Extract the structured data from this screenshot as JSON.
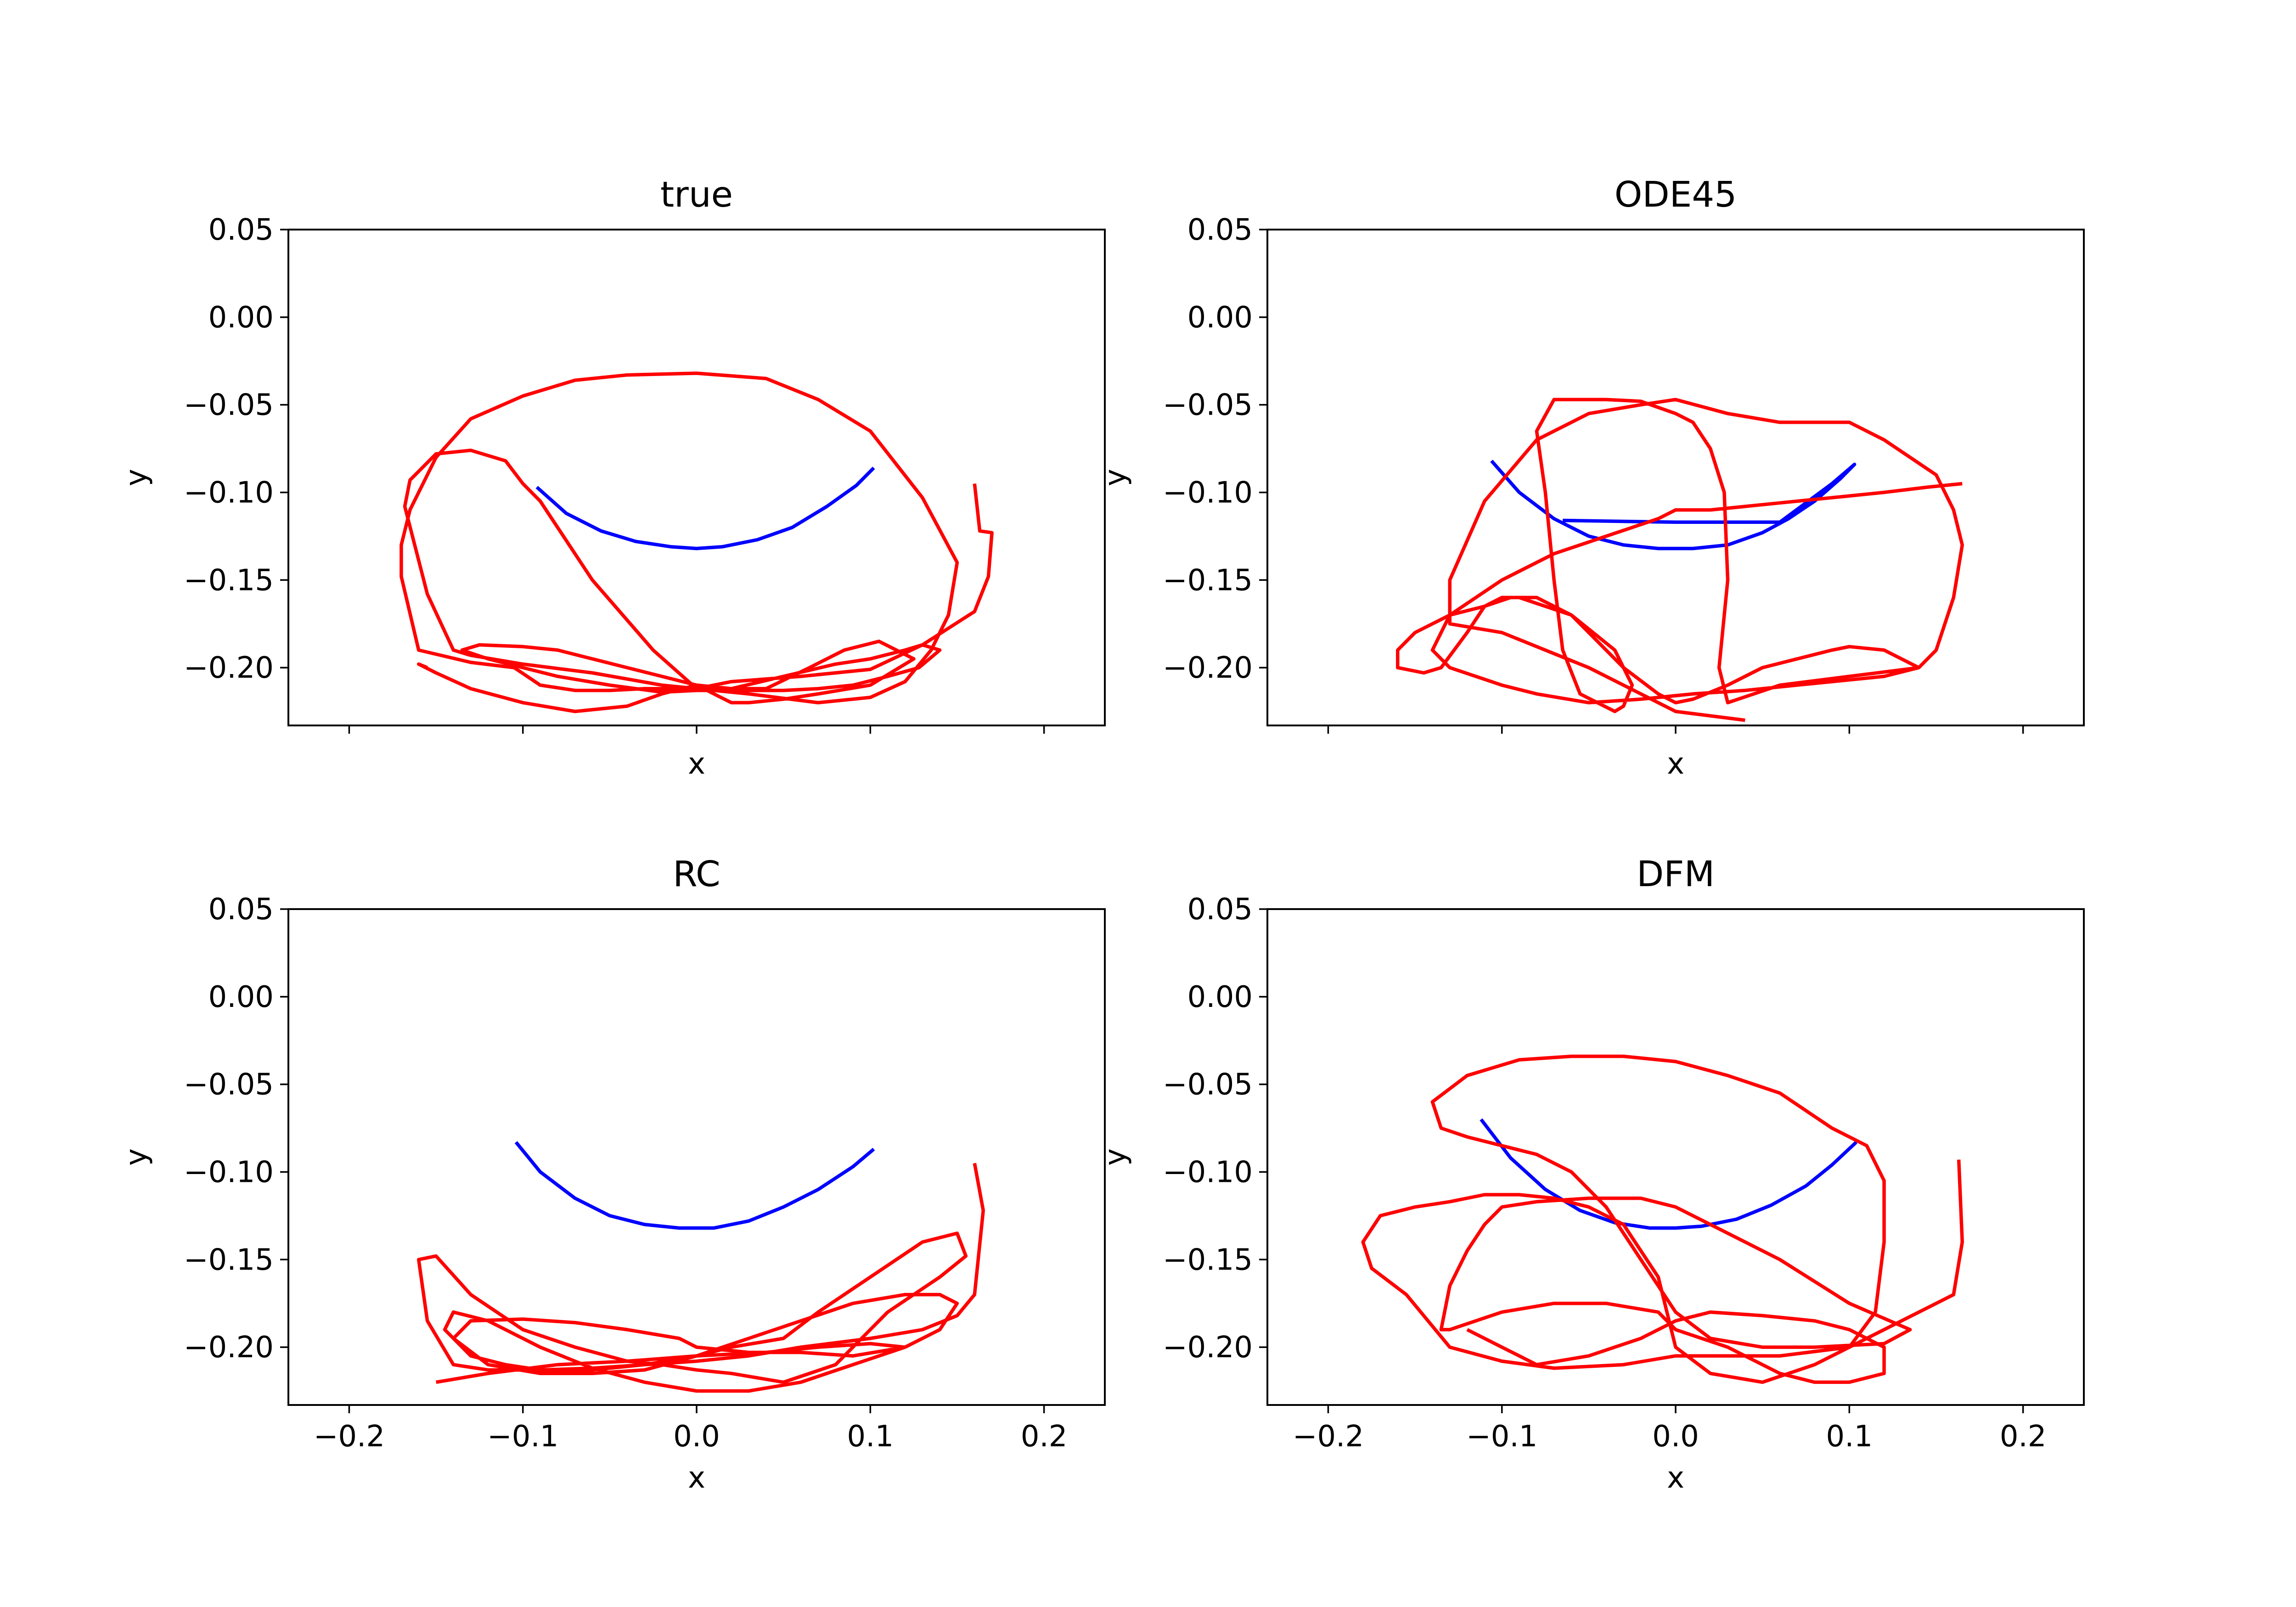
{
  "chart_data": [
    {
      "type": "line",
      "title": "true",
      "xlabel": "x",
      "ylabel": "y",
      "xlim": [
        -0.235,
        0.235
      ],
      "ylim": [
        -0.233,
        0.05
      ],
      "xticks": [
        -0.2,
        -0.1,
        0.0,
        0.1,
        0.2
      ],
      "xtick_labels": [],
      "yticks": [
        0.05,
        0.0,
        -0.05,
        -0.1,
        -0.15,
        -0.2
      ],
      "ytick_labels": [
        "0.05",
        "0.00",
        "−0.05",
        "−0.10",
        "−0.15",
        "−0.20"
      ],
      "series": [
        {
          "color": "#0000ff",
          "x": [
            -0.092,
            -0.075,
            -0.055,
            -0.035,
            -0.015,
            0.0,
            0.015,
            0.035,
            0.055,
            0.075,
            0.092,
            0.102
          ],
          "y": [
            -0.097,
            -0.112,
            -0.122,
            -0.128,
            -0.131,
            -0.132,
            -0.131,
            -0.127,
            -0.12,
            -0.108,
            -0.096,
            -0.086
          ]
        },
        {
          "color": "#ff0000",
          "x": [
            0.16,
            0.163,
            0.17,
            0.168,
            0.16,
            0.13,
            0.1,
            0.06,
            0.02,
            0.0,
            -0.02,
            -0.06,
            -0.1,
            -0.13,
            -0.14,
            -0.155,
            -0.168,
            -0.165,
            -0.15,
            -0.13,
            -0.11,
            -0.1,
            -0.09,
            -0.06,
            -0.025,
            0.0,
            0.03,
            0.07,
            0.1,
            0.12,
            0.135,
            0.145,
            0.15,
            0.13,
            0.1,
            0.07,
            0.04,
            0.0,
            -0.04,
            -0.07,
            -0.1,
            -0.13,
            -0.15,
            -0.165,
            -0.17,
            -0.17,
            -0.16,
            -0.13,
            -0.105,
            -0.09,
            -0.07,
            -0.05,
            -0.03,
            -0.01,
            0.0,
            0.02,
            0.05,
            0.08,
            0.1,
            0.12,
            0.13,
            0.14,
            0.128,
            0.11,
            0.09,
            0.07,
            0.05,
            0.03,
            0.01,
            0.0,
            -0.02,
            -0.05,
            -0.08,
            -0.1,
            -0.12,
            -0.135,
            -0.125,
            -0.1,
            -0.08,
            -0.06,
            -0.04,
            -0.02,
            0.0,
            0.02,
            0.04,
            0.065,
            0.085,
            0.105,
            0.125,
            0.1,
            0.07,
            0.05,
            0.03,
            0.02,
            0.01,
            0.0,
            -0.02,
            -0.04,
            -0.07,
            -0.1,
            -0.13,
            -0.15,
            -0.16,
            -0.155
          ],
          "y": [
            -0.095,
            -0.122,
            -0.123,
            -0.148,
            -0.168,
            -0.187,
            -0.201,
            -0.205,
            -0.208,
            -0.212,
            -0.21,
            -0.203,
            -0.198,
            -0.193,
            -0.19,
            -0.158,
            -0.108,
            -0.093,
            -0.078,
            -0.076,
            -0.082,
            -0.095,
            -0.105,
            -0.15,
            -0.19,
            -0.212,
            -0.215,
            -0.22,
            -0.217,
            -0.208,
            -0.19,
            -0.17,
            -0.14,
            -0.103,
            -0.065,
            -0.047,
            -0.035,
            -0.032,
            -0.033,
            -0.036,
            -0.045,
            -0.058,
            -0.08,
            -0.11,
            -0.13,
            -0.148,
            -0.19,
            -0.197,
            -0.2,
            -0.21,
            -0.213,
            -0.213,
            -0.212,
            -0.212,
            -0.213,
            -0.212,
            -0.205,
            -0.198,
            -0.195,
            -0.19,
            -0.187,
            -0.19,
            -0.2,
            -0.205,
            -0.21,
            -0.212,
            -0.213,
            -0.213,
            -0.213,
            -0.213,
            -0.214,
            -0.21,
            -0.205,
            -0.2,
            -0.195,
            -0.19,
            -0.187,
            -0.188,
            -0.19,
            -0.195,
            -0.2,
            -0.205,
            -0.21,
            -0.212,
            -0.212,
            -0.2,
            -0.19,
            -0.185,
            -0.195,
            -0.21,
            -0.215,
            -0.218,
            -0.22,
            -0.22,
            -0.215,
            -0.21,
            -0.215,
            -0.222,
            -0.225,
            -0.22,
            -0.212,
            -0.203,
            -0.198,
            -0.2
          ]
        }
      ]
    },
    {
      "type": "line",
      "title": "ODE45",
      "xlabel": "x",
      "ylabel": "y",
      "xlim": [
        -0.235,
        0.235
      ],
      "ylim": [
        -0.233,
        0.05
      ],
      "xticks": [
        -0.2,
        -0.1,
        0.0,
        0.1,
        0.2
      ],
      "xtick_labels": [],
      "yticks": [
        0.05,
        0.0,
        -0.05,
        -0.1,
        -0.15,
        -0.2
      ],
      "ytick_labels": [
        "0.05",
        "0.00",
        "−0.05",
        "−0.10",
        "−0.15",
        "−0.20"
      ],
      "series": [
        {
          "color": "#0000ff",
          "x": [
            -0.106,
            -0.09,
            -0.07,
            -0.05,
            -0.03,
            -0.01,
            0.0,
            0.01,
            0.03,
            0.05,
            0.065,
            0.08,
            0.095,
            0.103,
            0.09,
            0.06,
            0.0,
            -0.065
          ],
          "y": [
            -0.082,
            -0.1,
            -0.115,
            -0.125,
            -0.13,
            -0.132,
            -0.132,
            -0.132,
            -0.13,
            -0.123,
            -0.115,
            -0.105,
            -0.092,
            -0.084,
            -0.095,
            -0.117,
            -0.117,
            -0.116
          ],
          "comment_excluded": true
        },
        {
          "color": "#ff0000",
          "x": [
            0.04,
            0.0,
            -0.05,
            -0.1,
            -0.13,
            -0.13,
            -0.11,
            -0.08,
            -0.05,
            -0.02,
            0.0,
            0.03,
            0.06,
            0.1,
            0.12,
            0.15,
            0.16,
            0.165,
            0.16,
            0.15,
            0.14,
            0.1,
            0.06,
            0.03,
            0.025,
            0.03,
            0.028,
            0.02,
            0.01,
            0.0,
            -0.02,
            -0.04,
            -0.07,
            -0.08,
            -0.075,
            -0.07,
            -0.065,
            -0.055,
            -0.035,
            -0.03,
            -0.025,
            -0.035,
            -0.06,
            -0.09,
            -0.1,
            -0.11,
            -0.12,
            -0.135,
            -0.145,
            -0.16,
            -0.16,
            -0.15,
            -0.13,
            -0.11,
            -0.095,
            -0.08,
            -0.07,
            -0.06,
            -0.05,
            -0.03,
            -0.01,
            0.0,
            0.01,
            0.03,
            0.05,
            0.07,
            0.09,
            0.1,
            0.12,
            0.13,
            0.14,
            0.12,
            0.1,
            0.07,
            0.04,
            0.01,
            0.0,
            -0.02,
            -0.05,
            -0.08,
            -0.1,
            -0.13,
            -0.14,
            -0.13,
            -0.1,
            -0.07,
            -0.04,
            -0.01,
            0.0,
            0.01,
            0.02,
            0.04,
            0.06,
            0.08,
            0.1,
            0.12,
            0.145,
            0.165
          ],
          "y": [
            -0.23,
            -0.225,
            -0.2,
            -0.18,
            -0.175,
            -0.15,
            -0.105,
            -0.07,
            -0.055,
            -0.05,
            -0.047,
            -0.055,
            -0.06,
            -0.06,
            -0.07,
            -0.09,
            -0.11,
            -0.13,
            -0.16,
            -0.19,
            -0.2,
            -0.205,
            -0.21,
            -0.22,
            -0.2,
            -0.15,
            -0.1,
            -0.075,
            -0.06,
            -0.055,
            -0.048,
            -0.047,
            -0.047,
            -0.065,
            -0.1,
            -0.15,
            -0.19,
            -0.215,
            -0.225,
            -0.222,
            -0.21,
            -0.19,
            -0.17,
            -0.16,
            -0.16,
            -0.165,
            -0.18,
            -0.2,
            -0.203,
            -0.2,
            -0.19,
            -0.18,
            -0.17,
            -0.165,
            -0.16,
            -0.16,
            -0.165,
            -0.17,
            -0.18,
            -0.2,
            -0.215,
            -0.22,
            -0.218,
            -0.21,
            -0.2,
            -0.195,
            -0.19,
            -0.188,
            -0.19,
            -0.195,
            -0.2,
            -0.205,
            -0.207,
            -0.21,
            -0.213,
            -0.215,
            -0.216,
            -0.218,
            -0.22,
            -0.215,
            -0.21,
            -0.2,
            -0.19,
            -0.17,
            -0.15,
            -0.135,
            -0.125,
            -0.115,
            -0.11,
            -0.11,
            -0.11,
            -0.108,
            -0.106,
            -0.104,
            -0.102,
            -0.1,
            -0.097,
            -0.095
          ]
        }
      ]
    },
    {
      "type": "line",
      "title": "RC",
      "xlabel": "x",
      "ylabel": "y",
      "xlim": [
        -0.235,
        0.235
      ],
      "ylim": [
        -0.233,
        0.05
      ],
      "xticks": [
        -0.2,
        -0.1,
        0.0,
        0.1,
        0.2
      ],
      "xtick_labels": [
        "−0.2",
        "−0.1",
        "0.0",
        "0.1",
        "0.2"
      ],
      "yticks": [
        0.05,
        0.0,
        -0.05,
        -0.1,
        -0.15,
        -0.2
      ],
      "ytick_labels": [
        "0.05",
        "0.00",
        "−0.05",
        "−0.10",
        "−0.15",
        "−0.20"
      ],
      "series": [
        {
          "color": "#0000ff",
          "x": [
            -0.104,
            -0.09,
            -0.07,
            -0.05,
            -0.03,
            -0.01,
            0.0,
            0.01,
            0.03,
            0.05,
            0.07,
            0.09,
            0.102
          ],
          "y": [
            -0.083,
            -0.1,
            -0.115,
            -0.125,
            -0.13,
            -0.132,
            -0.132,
            -0.132,
            -0.128,
            -0.12,
            -0.11,
            -0.097,
            -0.087
          ]
        },
        {
          "color": "#ff0000",
          "x": [
            0.16,
            0.165,
            0.16,
            0.15,
            0.13,
            0.1,
            0.06,
            0.03,
            0.0,
            -0.03,
            -0.06,
            -0.09,
            -0.12,
            -0.14,
            -0.155,
            -0.16,
            -0.15,
            -0.13,
            -0.1,
            -0.07,
            -0.04,
            -0.02,
            0.0,
            0.02,
            0.05,
            0.08,
            0.11,
            0.14,
            0.155,
            0.15,
            0.13,
            0.1,
            0.07,
            0.05,
            0.02,
            0.0,
            -0.03,
            -0.06,
            -0.09,
            -0.11,
            -0.13,
            -0.145,
            -0.14,
            -0.12,
            -0.09,
            -0.06,
            -0.03,
            0.0,
            0.03,
            0.06,
            0.09,
            0.12,
            0.14,
            0.15,
            0.14,
            0.12,
            0.09,
            0.06,
            0.03,
            0.0,
            -0.03,
            -0.06,
            -0.09,
            -0.12,
            -0.14,
            -0.13,
            -0.1,
            -0.07,
            -0.04,
            -0.01,
            0.0,
            0.03,
            0.06,
            0.09,
            0.12,
            0.1,
            0.07,
            0.04,
            0.0,
            -0.04,
            -0.08,
            -0.12,
            -0.15
          ],
          "y": [
            -0.095,
            -0.122,
            -0.17,
            -0.182,
            -0.19,
            -0.195,
            -0.2,
            -0.205,
            -0.208,
            -0.21,
            -0.212,
            -0.213,
            -0.213,
            -0.21,
            -0.185,
            -0.15,
            -0.148,
            -0.17,
            -0.19,
            -0.2,
            -0.208,
            -0.21,
            -0.213,
            -0.215,
            -0.22,
            -0.21,
            -0.18,
            -0.16,
            -0.148,
            -0.135,
            -0.14,
            -0.16,
            -0.18,
            -0.195,
            -0.2,
            -0.205,
            -0.21,
            -0.213,
            -0.213,
            -0.21,
            -0.205,
            -0.19,
            -0.18,
            -0.185,
            -0.2,
            -0.212,
            -0.22,
            -0.225,
            -0.225,
            -0.22,
            -0.21,
            -0.2,
            -0.19,
            -0.175,
            -0.17,
            -0.17,
            -0.175,
            -0.185,
            -0.195,
            -0.205,
            -0.213,
            -0.215,
            -0.215,
            -0.21,
            -0.195,
            -0.185,
            -0.184,
            -0.186,
            -0.19,
            -0.195,
            -0.2,
            -0.203,
            -0.203,
            -0.205,
            -0.2,
            -0.198,
            -0.2,
            -0.203,
            -0.205,
            -0.208,
            -0.21,
            -0.215,
            -0.22
          ]
        }
      ]
    },
    {
      "type": "line",
      "title": "DFM",
      "xlabel": "x",
      "ylabel": "y",
      "xlim": [
        -0.235,
        0.235
      ],
      "ylim": [
        -0.233,
        0.05
      ],
      "xticks": [
        -0.2,
        -0.1,
        0.0,
        0.1,
        0.2
      ],
      "xtick_labels": [
        "−0.2",
        "−0.1",
        "0.0",
        "0.1",
        "0.2"
      ],
      "yticks": [
        0.05,
        0.0,
        -0.05,
        -0.1,
        -0.15,
        -0.2
      ],
      "ytick_labels": [
        "0.05",
        "0.00",
        "−0.05",
        "−0.10",
        "−0.15",
        "−0.20"
      ],
      "series": [
        {
          "color": "#0000ff",
          "x": [
            -0.112,
            -0.095,
            -0.075,
            -0.055,
            -0.035,
            -0.015,
            0.0,
            0.015,
            0.035,
            0.055,
            0.075,
            0.09,
            0.104
          ],
          "y": [
            -0.07,
            -0.092,
            -0.11,
            -0.122,
            -0.129,
            -0.132,
            -0.132,
            -0.131,
            -0.127,
            -0.119,
            -0.108,
            -0.096,
            -0.083
          ]
        },
        {
          "color": "#ff0000",
          "x": [
            0.163,
            0.165,
            0.16,
            0.12,
            0.1,
            0.06,
            0.03,
            0.0,
            -0.03,
            -0.07,
            -0.1,
            -0.13,
            -0.155,
            -0.175,
            -0.18,
            -0.17,
            -0.15,
            -0.13,
            -0.11,
            -0.09,
            -0.07,
            -0.05,
            -0.03,
            -0.01,
            0.0,
            0.02,
            0.05,
            0.08,
            0.1,
            0.115,
            0.12,
            0.12,
            0.11,
            0.09,
            0.06,
            0.03,
            0.0,
            -0.03,
            -0.06,
            -0.09,
            -0.12,
            -0.14,
            -0.135,
            -0.12,
            -0.1,
            -0.08,
            -0.06,
            -0.04,
            -0.02,
            0.0,
            0.02,
            0.05,
            0.08,
            0.1,
            0.12,
            0.135,
            0.1,
            0.06,
            0.02,
            0.0,
            -0.02,
            -0.05,
            -0.08,
            -0.1,
            -0.11,
            -0.12,
            -0.13,
            -0.135,
            -0.13,
            -0.1,
            -0.07,
            -0.04,
            -0.01,
            0.0,
            0.03,
            0.06,
            0.08,
            0.1,
            0.12,
            0.12,
            0.1,
            0.08,
            0.05,
            0.02,
            0.0,
            -0.02,
            -0.05,
            -0.08,
            -0.1,
            -0.12
          ],
          "y": [
            -0.093,
            -0.14,
            -0.17,
            -0.19,
            -0.2,
            -0.205,
            -0.205,
            -0.205,
            -0.21,
            -0.212,
            -0.208,
            -0.2,
            -0.17,
            -0.155,
            -0.14,
            -0.125,
            -0.12,
            -0.117,
            -0.113,
            -0.113,
            -0.115,
            -0.12,
            -0.13,
            -0.16,
            -0.2,
            -0.215,
            -0.22,
            -0.21,
            -0.2,
            -0.18,
            -0.14,
            -0.105,
            -0.085,
            -0.075,
            -0.055,
            -0.045,
            -0.037,
            -0.034,
            -0.034,
            -0.036,
            -0.045,
            -0.06,
            -0.075,
            -0.08,
            -0.085,
            -0.09,
            -0.1,
            -0.12,
            -0.15,
            -0.18,
            -0.195,
            -0.2,
            -0.2,
            -0.199,
            -0.198,
            -0.19,
            -0.175,
            -0.15,
            -0.13,
            -0.12,
            -0.115,
            -0.115,
            -0.117,
            -0.12,
            -0.13,
            -0.145,
            -0.165,
            -0.19,
            -0.19,
            -0.18,
            -0.175,
            -0.175,
            -0.18,
            -0.19,
            -0.2,
            -0.215,
            -0.22,
            -0.22,
            -0.215,
            -0.2,
            -0.19,
            -0.185,
            -0.182,
            -0.18,
            -0.185,
            -0.195,
            -0.205,
            -0.21,
            -0.2,
            -0.19
          ]
        }
      ]
    }
  ]
}
